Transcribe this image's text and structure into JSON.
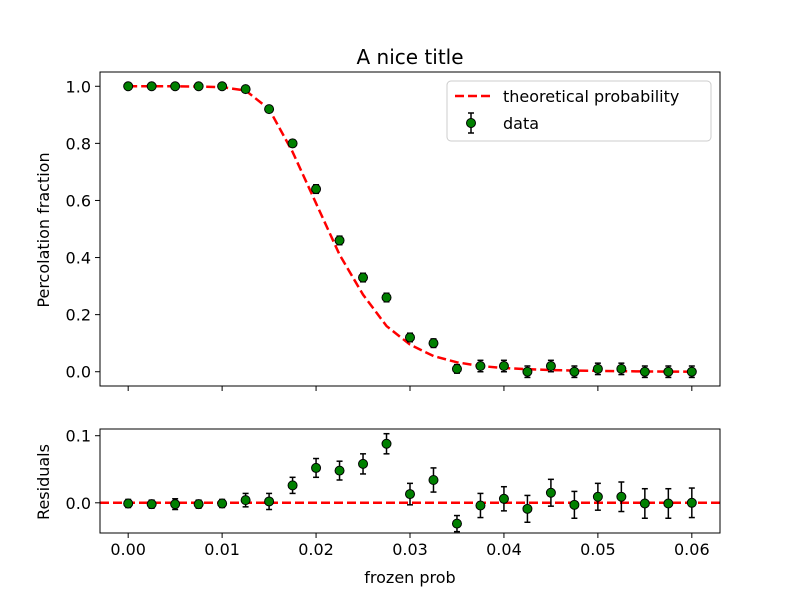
{
  "chart_data": [
    {
      "type": "scatter",
      "panel": "main",
      "title": "A nice title",
      "xlabel": "",
      "ylabel": "Percolation fraction",
      "xlim": [
        -0.003,
        0.063
      ],
      "ylim": [
        -0.05,
        1.05
      ],
      "xticks": [
        0.0,
        0.01,
        0.02,
        0.03,
        0.04,
        0.05,
        0.06
      ],
      "xtick_labels_visible": false,
      "yticks": [
        0.0,
        0.2,
        0.4,
        0.6,
        0.8,
        1.0
      ],
      "ytick_labels": [
        "0.0",
        "0.2",
        "0.4",
        "0.6",
        "0.8",
        "1.0"
      ],
      "grid": false,
      "legend": {
        "placement": "top-right",
        "entries": [
          "theoretical probability",
          "data"
        ]
      },
      "series": [
        {
          "name": "theoretical probability",
          "kind": "line",
          "style": "dashed",
          "color": "#ff0000",
          "x": [
            0.0,
            0.0025,
            0.005,
            0.0075,
            0.01,
            0.0125,
            0.015,
            0.0175,
            0.02,
            0.0225,
            0.025,
            0.0275,
            0.03,
            0.0325,
            0.035,
            0.0375,
            0.04,
            0.0425,
            0.045,
            0.0475,
            0.05,
            0.0525,
            0.055,
            0.0575,
            0.06
          ],
          "y": [
            1.0,
            1.0,
            1.0,
            0.999,
            0.997,
            0.985,
            0.92,
            0.77,
            0.59,
            0.41,
            0.27,
            0.16,
            0.095,
            0.055,
            0.033,
            0.02,
            0.013,
            0.009,
            0.006,
            0.004,
            0.003,
            0.002,
            0.001,
            0.0005,
            0.0
          ]
        },
        {
          "name": "data",
          "kind": "errorbar",
          "marker_color": "#008000",
          "x": [
            0.0,
            0.0025,
            0.005,
            0.0075,
            0.01,
            0.0125,
            0.015,
            0.0175,
            0.02,
            0.0225,
            0.025,
            0.0275,
            0.03,
            0.0325,
            0.035,
            0.0375,
            0.04,
            0.0425,
            0.045,
            0.0475,
            0.05,
            0.0525,
            0.055,
            0.0575,
            0.06
          ],
          "y": [
            1.0,
            1.0,
            1.0,
            1.0,
            1.0,
            0.99,
            0.92,
            0.8,
            0.64,
            0.46,
            0.33,
            0.26,
            0.12,
            0.1,
            0.01,
            0.02,
            0.02,
            0.0,
            0.02,
            0.0,
            0.01,
            0.01,
            0.0,
            0.0,
            0.0
          ],
          "yerr": [
            0.005,
            0.005,
            0.005,
            0.005,
            0.005,
            0.01,
            0.01,
            0.012,
            0.015,
            0.015,
            0.015,
            0.015,
            0.015,
            0.015,
            0.015,
            0.02,
            0.02,
            0.02,
            0.02,
            0.02,
            0.02,
            0.02,
            0.02,
            0.02,
            0.02
          ]
        }
      ]
    },
    {
      "type": "scatter",
      "panel": "residuals",
      "title": "",
      "xlabel": "frozen prob",
      "ylabel": "Residuals",
      "xlim": [
        -0.003,
        0.063
      ],
      "ylim": [
        -0.045,
        0.11
      ],
      "xticks": [
        0.0,
        0.01,
        0.02,
        0.03,
        0.04,
        0.05,
        0.06
      ],
      "xtick_labels": [
        "0.00",
        "0.01",
        "0.02",
        "0.03",
        "0.04",
        "0.05",
        "0.06"
      ],
      "yticks": [
        0.0,
        0.1
      ],
      "ytick_labels": [
        "0.0",
        "0.1"
      ],
      "grid": false,
      "series": [
        {
          "kind": "hline",
          "style": "dashed",
          "color": "#ff0000",
          "y": 0.0
        },
        {
          "kind": "errorbar",
          "marker_color": "#008000",
          "x": [
            0.0,
            0.0025,
            0.005,
            0.0075,
            0.01,
            0.0125,
            0.015,
            0.0175,
            0.02,
            0.0225,
            0.025,
            0.0275,
            0.03,
            0.0325,
            0.035,
            0.0375,
            0.04,
            0.0425,
            0.045,
            0.0475,
            0.05,
            0.0525,
            0.055,
            0.0575,
            0.06
          ],
          "y": [
            -0.001,
            -0.002,
            -0.002,
            -0.002,
            -0.001,
            0.004,
            0.002,
            0.026,
            0.052,
            0.048,
            0.058,
            0.088,
            0.013,
            0.034,
            -0.031,
            -0.004,
            0.006,
            -0.009,
            0.015,
            -0.003,
            0.009,
            0.009,
            -0.001,
            -0.001,
            0.0
          ],
          "yerr": [
            0.006,
            0.006,
            0.008,
            0.006,
            0.006,
            0.01,
            0.012,
            0.012,
            0.014,
            0.014,
            0.015,
            0.015,
            0.016,
            0.018,
            0.012,
            0.018,
            0.018,
            0.02,
            0.02,
            0.02,
            0.02,
            0.022,
            0.022,
            0.022,
            0.022
          ]
        }
      ]
    }
  ]
}
